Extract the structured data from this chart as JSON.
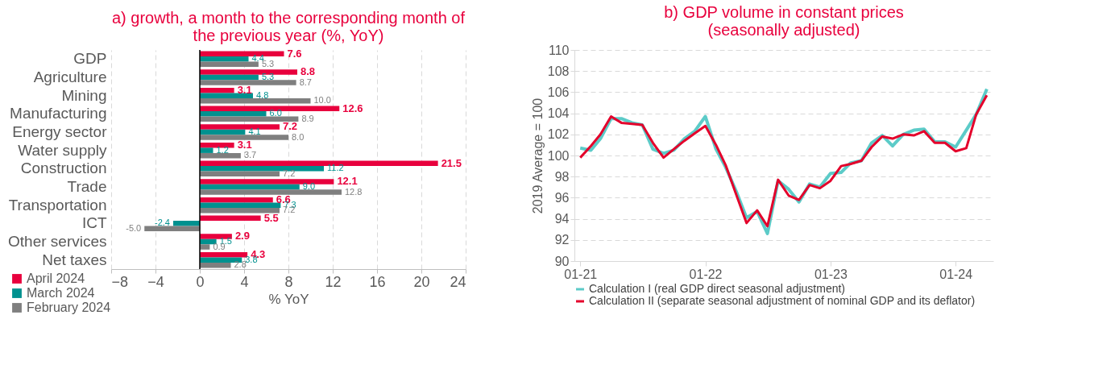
{
  "chart_data": [
    {
      "type": "bar",
      "orientation": "horizontal",
      "title": "a) growth, a month to the corresponding month of the previous year (%, YoY)",
      "xlabel": "% YoY",
      "categories": [
        "GDP",
        "Agriculture",
        "Mining",
        "Manufacturing",
        "Energy sector",
        "Water supply",
        "Construction",
        "Trade",
        "Transportation",
        "ICT",
        "Other services",
        "Net taxes"
      ],
      "series": [
        {
          "name": "April 2024",
          "color": "#e8003d",
          "values": [
            7.6,
            8.8,
            3.1,
            12.6,
            7.2,
            3.1,
            21.5,
            12.1,
            6.6,
            5.5,
            2.9,
            4.3
          ],
          "value_labels": [
            "7.6",
            "8.8",
            "3.1",
            "12.6",
            "7.2",
            "3.1",
            "21.5",
            "12.1",
            "6.6",
            "5.5",
            "2.9",
            "4.3"
          ]
        },
        {
          "name": "March 2024",
          "color": "#00918f",
          "values": [
            4.4,
            5.3,
            4.8,
            6.0,
            4.1,
            1.2,
            11.2,
            9.0,
            7.3,
            -2.4,
            1.5,
            3.8
          ],
          "value_labels": [
            "4.4",
            "5.3",
            "4.8",
            "6.0",
            "4.1",
            "1.2",
            "11.2",
            "9.0",
            "7.3",
            "-2.4",
            "1.5",
            "3.8"
          ]
        },
        {
          "name": "February 2024",
          "color": "#7f7f7f",
          "values": [
            5.3,
            8.7,
            10.0,
            8.9,
            8.0,
            3.7,
            7.2,
            12.8,
            7.2,
            -5.0,
            0.9,
            2.8
          ],
          "value_labels": [
            "5.3",
            "8.7",
            "10.0",
            "8.9",
            "8.0",
            "3.7",
            "7.2",
            "12.8",
            "7.2",
            "-5.0",
            "0.9",
            "2.8"
          ]
        }
      ],
      "xlim": [
        -8,
        24
      ],
      "xticks": [
        -8,
        -4,
        0,
        4,
        8,
        12,
        16,
        20,
        24
      ],
      "grid": "x",
      "legend": "bottom left"
    },
    {
      "type": "line",
      "title": "b) GDP volume in constant prices (seasonally adjusted)",
      "ylabel": "2019 Average = 100",
      "x": [
        "2021-01",
        "2021-02",
        "2021-03",
        "2021-04",
        "2021-05",
        "2021-06",
        "2021-07",
        "2021-08",
        "2021-09",
        "2021-10",
        "2021-11",
        "2021-12",
        "2022-01",
        "2022-02",
        "2022-03",
        "2022-04",
        "2022-05",
        "2022-06",
        "2022-07",
        "2022-08",
        "2022-09",
        "2022-10",
        "2022-11",
        "2022-12",
        "2023-01",
        "2023-02",
        "2023-03",
        "2023-04",
        "2023-05",
        "2023-06",
        "2023-07",
        "2023-08",
        "2023-09",
        "2023-10",
        "2023-11",
        "2023-12",
        "2024-01",
        "2024-02",
        "2024-03",
        "2024-04"
      ],
      "series": [
        {
          "name": "Calculation I (real GDP direct seasonal adjustment)",
          "color": "#5ccbc8",
          "values": [
            100.7,
            100.5,
            101.6,
            103.5,
            103.5,
            103.1,
            102.9,
            100.6,
            100.2,
            100.5,
            101.6,
            102.3,
            103.7,
            100.6,
            98.9,
            96.6,
            94.1,
            94.7,
            92.6,
            97.6,
            96.8,
            95.6,
            97.3,
            97.0,
            98.3,
            98.4,
            99.3,
            99.5,
            101.2,
            101.9,
            100.9,
            102.0,
            102.4,
            102.5,
            101.3,
            101.3,
            100.8,
            102.4,
            103.9,
            106.3
          ]
        },
        {
          "name": "Calculation II (separate seasonal adjustment of nominal GDP and its deflator)",
          "color": "#e4002b",
          "values": [
            99.8,
            100.9,
            102.0,
            103.7,
            103.1,
            103.0,
            102.9,
            101.2,
            99.8,
            100.6,
            101.4,
            102.1,
            102.8,
            101.0,
            99.1,
            96.3,
            93.6,
            94.8,
            93.3,
            97.7,
            96.2,
            95.8,
            97.2,
            96.9,
            97.6,
            99.0,
            99.2,
            99.5,
            100.8,
            101.8,
            101.6,
            102.0,
            101.9,
            102.3,
            101.2,
            101.2,
            100.4,
            100.7,
            103.9,
            105.7
          ]
        }
      ],
      "xlim": [
        "2020-12-15",
        "2024-04-20"
      ],
      "xticks": [
        {
          "value": "2021-01",
          "label": "01-21"
        },
        {
          "value": "2022-01",
          "label": "01-22"
        },
        {
          "value": "2023-01",
          "label": "01-23"
        },
        {
          "value": "2024-01",
          "label": "01-24"
        }
      ],
      "ylim": [
        90,
        110
      ],
      "yticks": [
        90,
        92,
        94,
        96,
        98,
        100,
        102,
        104,
        106,
        108,
        110
      ],
      "grid": "y",
      "legend": "bottom"
    }
  ]
}
